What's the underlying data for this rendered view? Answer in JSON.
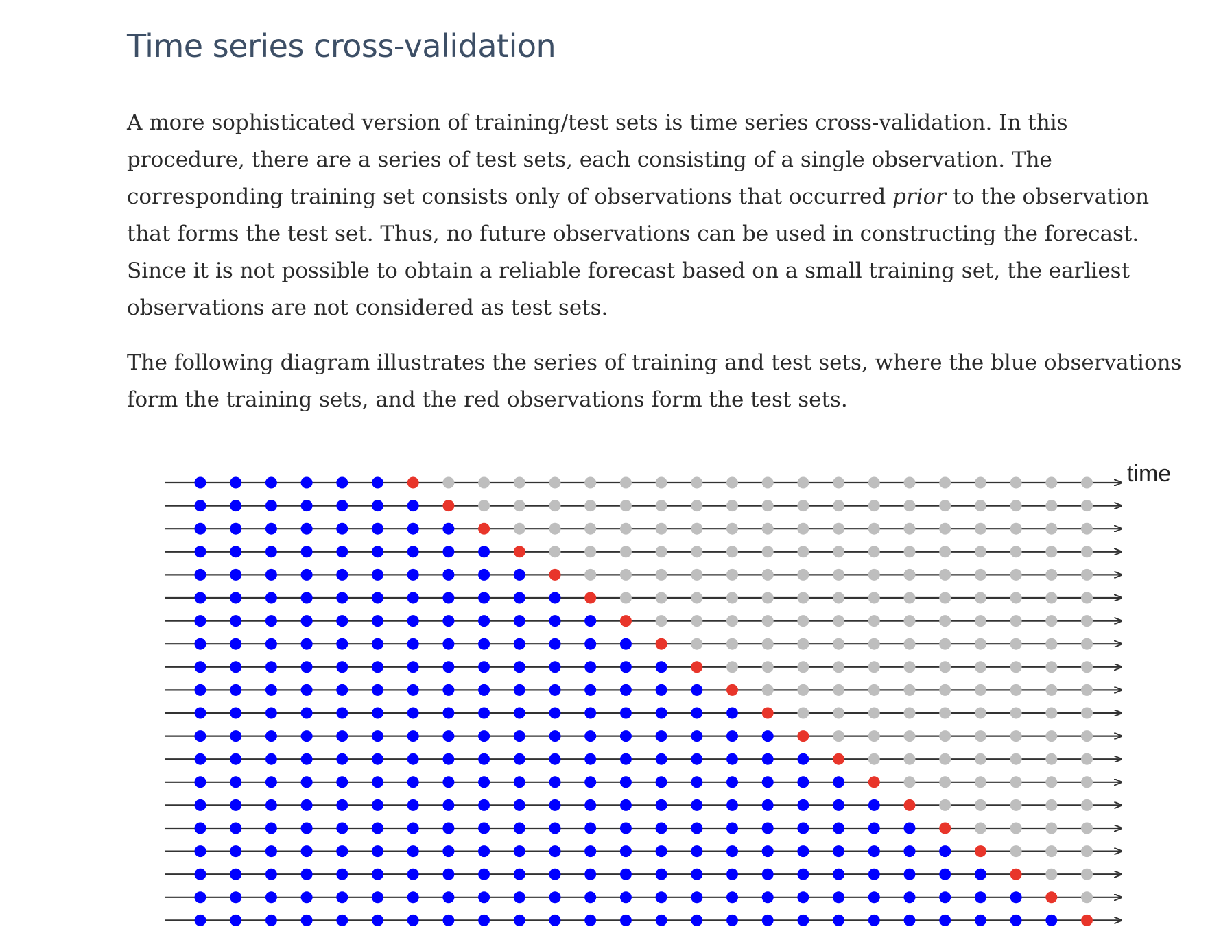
{
  "section": {
    "title": "Time series cross-validation"
  },
  "paragraphs": {
    "p1_part1": "A more sophisticated version of training/test sets is time series cross-validation. In this procedure, there are a series of test sets, each consisting of a single observation. The corresponding training set consists only of observations that occurred ",
    "p1_emphasis": "prior",
    "p1_part2": " to the observation that forms the test set. Thus, no future observations can be used in constructing the forecast. Since it is not possible to obtain a reliable forecast based on a small training set, the earliest observations are not considered as test sets.",
    "p2": "The following diagram illustrates the series of training and test sets, where the blue observations form the training sets, and the red observations form the test sets."
  },
  "diagram": {
    "axis_label": "time",
    "rows": 20,
    "points_per_row": 26,
    "initial_training_size": 6,
    "colors": {
      "training": "#0000ff",
      "test": "#e8352a",
      "unused": "#bebebe",
      "line": "#333333"
    }
  }
}
